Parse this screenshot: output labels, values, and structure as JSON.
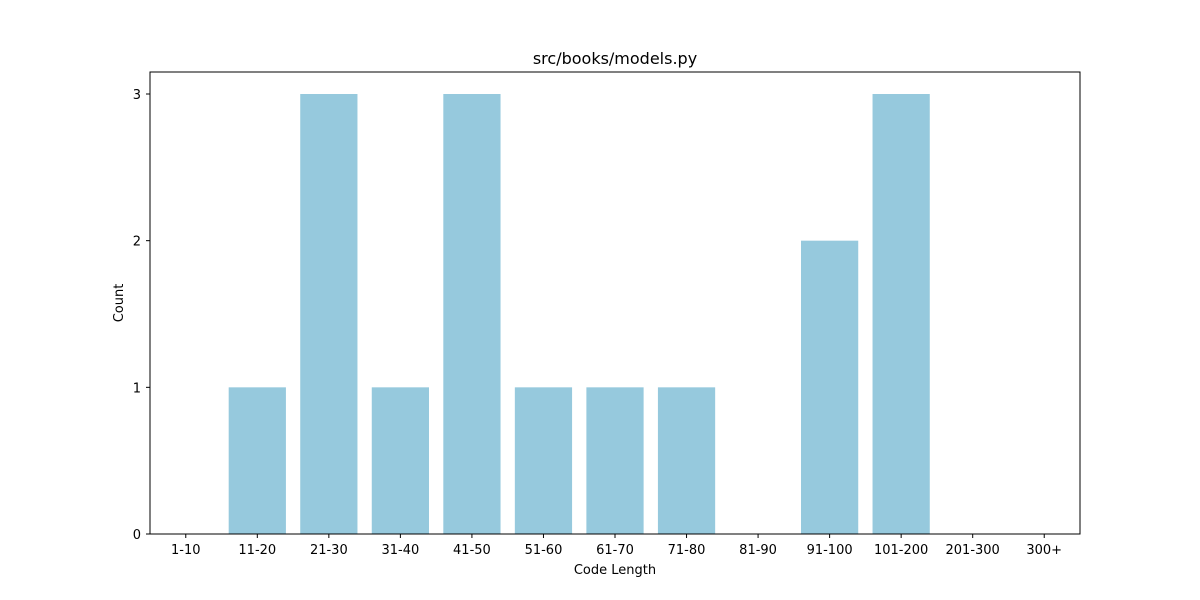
{
  "chart_data": {
    "type": "bar",
    "title": "src/books/models.py",
    "xlabel": "Code Length",
    "ylabel": "Count",
    "categories": [
      "1-10",
      "11-20",
      "21-30",
      "31-40",
      "41-50",
      "51-60",
      "61-70",
      "71-80",
      "81-90",
      "91-100",
      "101-200",
      "201-300",
      "300+"
    ],
    "values": [
      0,
      1,
      3,
      1,
      3,
      1,
      1,
      1,
      0,
      2,
      3,
      0,
      0
    ],
    "yticks": [
      0,
      1,
      2,
      3
    ],
    "ylim": [
      0,
      3.15
    ],
    "grid": false,
    "bar_color": "#96c9dd"
  }
}
